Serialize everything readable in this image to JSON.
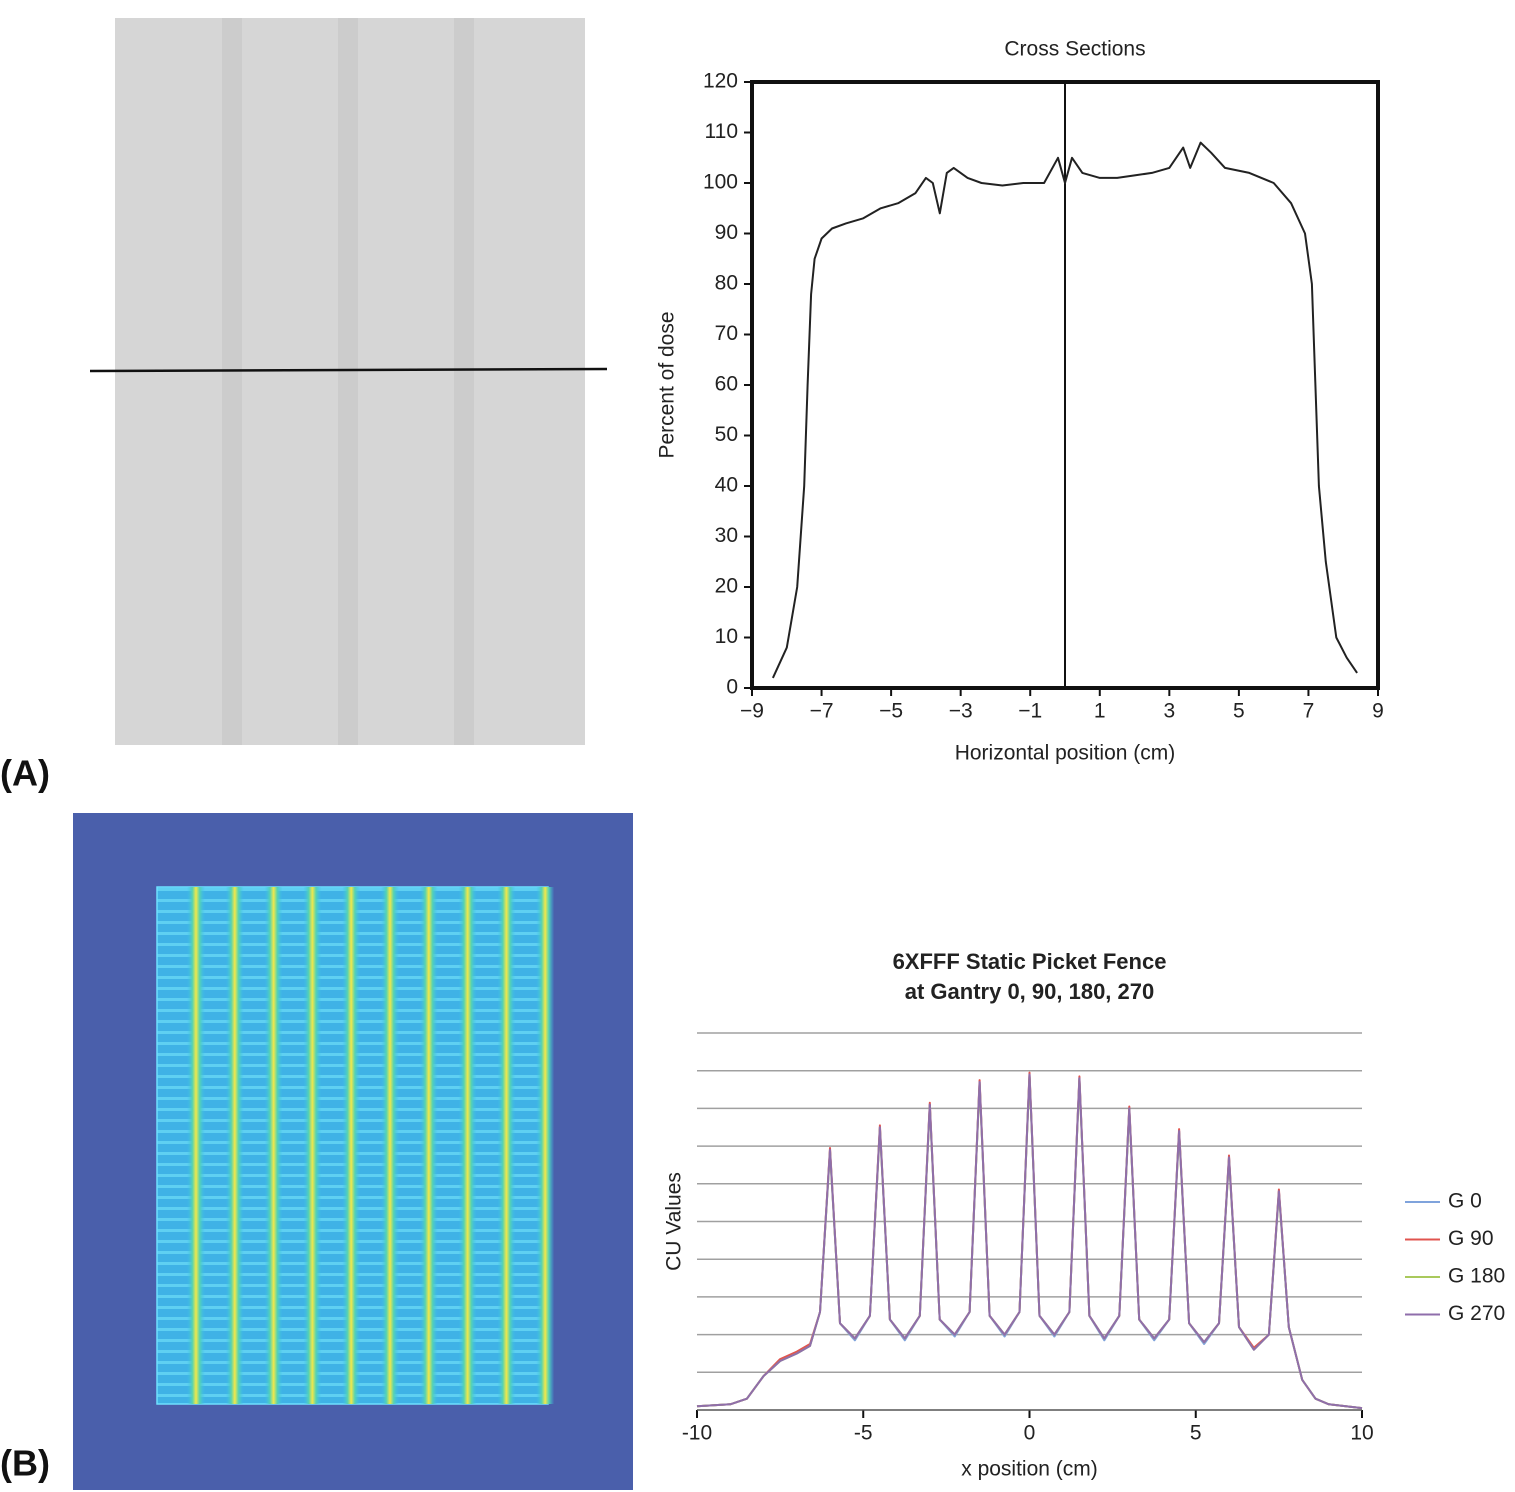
{
  "panel_labels": [
    "(A)",
    "(B)"
  ],
  "chart_data": [
    {
      "type": "line",
      "title": "Cross Sections",
      "xlabel": "Horizontal position (cm)",
      "ylabel": "Percent of dose",
      "xlim": [
        -9,
        9
      ],
      "xticks": [
        {
          "value": -9,
          "label": "−9"
        },
        {
          "value": -7,
          "label": "−7"
        },
        {
          "value": -5,
          "label": "−5"
        },
        {
          "value": -3,
          "label": "−3"
        },
        {
          "value": -1,
          "label": "−1"
        },
        1,
        3,
        5,
        7,
        9
      ],
      "ylim": [
        0,
        120
      ],
      "yticks": [
        0,
        10,
        20,
        30,
        40,
        50,
        60,
        70,
        80,
        90,
        100,
        110,
        120
      ],
      "cursor_x": 0,
      "color": "#222222",
      "grid": false,
      "x": [
        -8.4,
        -8.0,
        -7.7,
        -7.5,
        -7.4,
        -7.3,
        -7.2,
        -7.0,
        -6.7,
        -6.3,
        -5.8,
        -5.3,
        -4.8,
        -4.3,
        -4.0,
        -3.8,
        -3.6,
        -3.4,
        -3.2,
        -2.8,
        -2.4,
        -1.8,
        -1.2,
        -0.6,
        -0.2,
        0.0,
        0.2,
        0.5,
        1.0,
        1.5,
        2.0,
        2.5,
        3.0,
        3.4,
        3.6,
        3.9,
        4.2,
        4.6,
        5.3,
        6.0,
        6.5,
        6.9,
        7.1,
        7.2,
        7.3,
        7.5,
        7.8,
        8.1,
        8.4
      ],
      "values": [
        2,
        8,
        20,
        40,
        60,
        78,
        85,
        89,
        91,
        92,
        93,
        95,
        96,
        98,
        101,
        100,
        94,
        102,
        103,
        101,
        100,
        99.5,
        100,
        100,
        105,
        100,
        105,
        102,
        101,
        101,
        101.5,
        102,
        103,
        107,
        103,
        108,
        106,
        103,
        102,
        100,
        96,
        90,
        80,
        60,
        40,
        25,
        10,
        6,
        3
      ]
    },
    {
      "type": "line",
      "title": [
        "6XFFF Static Picket Fence",
        "at Gantry 0, 90, 180, 270"
      ],
      "xlabel": "x position (cm)",
      "ylabel": "CU Values",
      "xlim": [
        -10,
        10
      ],
      "xticks": [
        -10,
        -5,
        0,
        5,
        10
      ],
      "ylim": [
        0,
        10
      ],
      "ygrid": [
        1,
        2,
        3,
        4,
        5,
        6,
        7,
        8,
        9,
        10
      ],
      "grid": true,
      "legend": "right",
      "x": [
        -10,
        -9,
        -8.5,
        -8,
        -7.5,
        -7,
        -6.6,
        -6.3,
        -6,
        -5.7,
        -5.25,
        -4.8,
        -4.5,
        -4.2,
        -3.75,
        -3.3,
        -3,
        -2.7,
        -2.25,
        -1.8,
        -1.5,
        -1.2,
        -0.75,
        -0.3,
        0,
        0.3,
        0.75,
        1.2,
        1.5,
        1.8,
        2.25,
        2.7,
        3,
        3.3,
        3.75,
        4.2,
        4.5,
        4.8,
        5.25,
        5.7,
        6,
        6.3,
        6.75,
        7.2,
        7.5,
        7.8,
        8.2,
        8.6,
        9,
        10
      ],
      "series": [
        {
          "name": "G 0",
          "color": "#7fa3dc",
          "values": [
            0.1,
            0.15,
            0.3,
            0.9,
            1.3,
            1.5,
            1.7,
            2.6,
            6.9,
            2.3,
            1.85,
            2.5,
            7.5,
            2.4,
            1.85,
            2.5,
            8.1,
            2.4,
            1.95,
            2.6,
            8.7,
            2.5,
            1.95,
            2.6,
            8.9,
            2.5,
            1.95,
            2.6,
            8.8,
            2.5,
            1.85,
            2.5,
            8.0,
            2.4,
            1.85,
            2.4,
            7.4,
            2.3,
            1.75,
            2.3,
            6.7,
            2.2,
            1.6,
            2.0,
            5.8,
            2.2,
            0.8,
            0.3,
            0.15,
            0.05
          ]
        },
        {
          "name": "G 90",
          "color": "#e0544f",
          "values": [
            0.1,
            0.15,
            0.3,
            0.9,
            1.35,
            1.55,
            1.75,
            2.6,
            6.95,
            2.3,
            1.9,
            2.5,
            7.55,
            2.4,
            1.9,
            2.5,
            8.15,
            2.4,
            2.0,
            2.6,
            8.75,
            2.5,
            2.0,
            2.6,
            8.95,
            2.5,
            2.0,
            2.6,
            8.85,
            2.5,
            1.9,
            2.5,
            8.05,
            2.4,
            1.9,
            2.4,
            7.45,
            2.3,
            1.8,
            2.3,
            6.75,
            2.2,
            1.65,
            2.0,
            5.85,
            2.2,
            0.8,
            0.3,
            0.15,
            0.05
          ]
        },
        {
          "name": "G 180",
          "color": "#a9c95c",
          "values": [
            0.1,
            0.15,
            0.3,
            0.9,
            1.3,
            1.5,
            1.7,
            2.6,
            6.85,
            2.3,
            1.9,
            2.5,
            7.45,
            2.4,
            1.9,
            2.5,
            8.05,
            2.4,
            2.0,
            2.6,
            8.65,
            2.5,
            2.0,
            2.6,
            8.85,
            2.5,
            2.0,
            2.6,
            8.75,
            2.5,
            1.9,
            2.5,
            7.95,
            2.4,
            1.9,
            2.4,
            7.35,
            2.3,
            1.8,
            2.3,
            6.65,
            2.2,
            1.6,
            2.0,
            5.75,
            2.2,
            0.8,
            0.3,
            0.15,
            0.05
          ]
        },
        {
          "name": "G 270",
          "color": "#8f6eab",
          "values": [
            0.1,
            0.15,
            0.3,
            0.9,
            1.3,
            1.5,
            1.7,
            2.6,
            6.9,
            2.3,
            1.9,
            2.5,
            7.5,
            2.4,
            1.9,
            2.5,
            8.1,
            2.4,
            2.0,
            2.6,
            8.7,
            2.5,
            2.0,
            2.6,
            8.9,
            2.5,
            2.0,
            2.6,
            8.8,
            2.5,
            1.9,
            2.5,
            8.0,
            2.4,
            1.9,
            2.4,
            7.4,
            2.3,
            1.8,
            2.3,
            6.7,
            2.2,
            1.6,
            2.0,
            5.8,
            2.2,
            0.8,
            0.3,
            0.15,
            0.05
          ]
        }
      ]
    }
  ]
}
